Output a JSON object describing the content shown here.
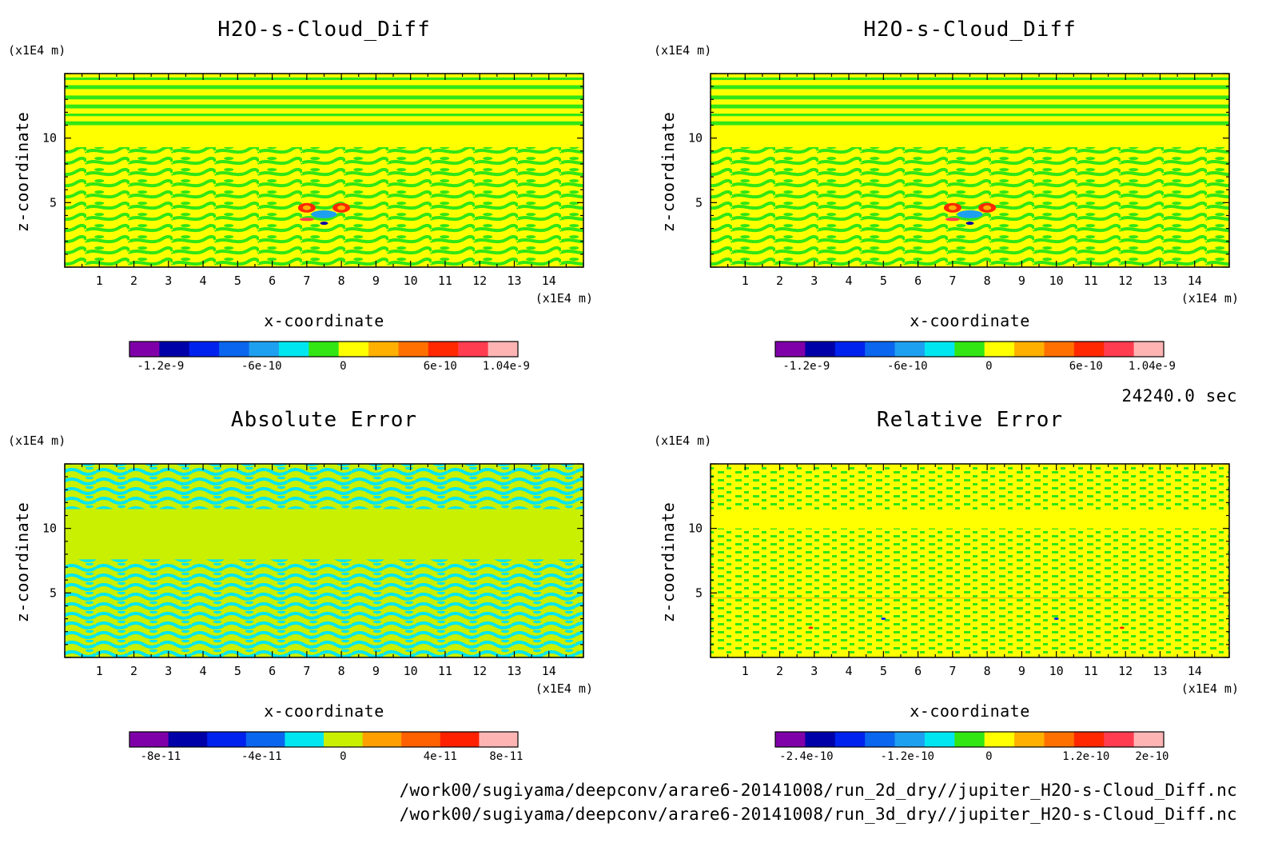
{
  "footer": {
    "time_label": "24240.0 sec",
    "path_line_1": "/work00/sugiyama/deepconv/arare6-20141008/run_2d_dry//jupiter_H2O-s-Cloud_Diff.nc",
    "path_line_2": "/work00/sugiyama/deepconv/arare6-20141008/run_3d_dry//jupiter_H2O-s-Cloud_Diff.nc"
  },
  "chart_data": [
    {
      "type": "heatmap",
      "title": "H2O-s-Cloud_Diff",
      "xlabel": "x-coordinate",
      "ylabel": "z-coordinate",
      "x_unit": "(x1E4 m)",
      "y_unit": "(x1E4 m)",
      "xlim": [
        0,
        15
      ],
      "ylim": [
        0,
        15
      ],
      "x_ticks": [
        "1",
        "2",
        "3",
        "4",
        "5",
        "6",
        "7",
        "8",
        "9",
        "10",
        "11",
        "12",
        "13",
        "14"
      ],
      "y_ticks": [
        "5",
        "10"
      ],
      "colorbar": {
        "colors": [
          "#7f00a8",
          "#0000a8",
          "#0022ee",
          "#0a66ee",
          "#1ea0f0",
          "#00e6f0",
          "#32e614",
          "#ffff00",
          "#ffb000",
          "#ff7000",
          "#ff2800",
          "#ff3c50",
          "#ffb4b4"
        ],
        "tick_labels": [
          "-1.2e-9",
          "-6e-10",
          "0",
          "6e-10",
          "1.04e-9"
        ]
      },
      "dominant_color": "#ffff00",
      "secondary_color": "#32e614"
    },
    {
      "type": "heatmap",
      "title": "H2O-s-Cloud_Diff",
      "xlabel": "x-coordinate",
      "ylabel": "z-coordinate",
      "x_unit": "(x1E4 m)",
      "y_unit": "(x1E4 m)",
      "xlim": [
        0,
        15
      ],
      "ylim": [
        0,
        15
      ],
      "x_ticks": [
        "1",
        "2",
        "3",
        "4",
        "5",
        "6",
        "7",
        "8",
        "9",
        "10",
        "11",
        "12",
        "13",
        "14"
      ],
      "y_ticks": [
        "5",
        "10"
      ],
      "colorbar": {
        "colors": [
          "#7f00a8",
          "#0000a8",
          "#0022ee",
          "#0a66ee",
          "#1ea0f0",
          "#00e6f0",
          "#32e614",
          "#ffff00",
          "#ffb000",
          "#ff7000",
          "#ff2800",
          "#ff3c50",
          "#ffb4b4"
        ],
        "tick_labels": [
          "-1.2e-9",
          "-6e-10",
          "0",
          "6e-10",
          "1.04e-9"
        ]
      },
      "dominant_color": "#ffff00",
      "secondary_color": "#32e614"
    },
    {
      "type": "heatmap",
      "title": "Absolute Error",
      "xlabel": "x-coordinate",
      "ylabel": "z-coordinate",
      "x_unit": "(x1E4 m)",
      "y_unit": "(x1E4 m)",
      "xlim": [
        0,
        15
      ],
      "ylim": [
        0,
        15
      ],
      "x_ticks": [
        "1",
        "2",
        "3",
        "4",
        "5",
        "6",
        "7",
        "8",
        "9",
        "10",
        "11",
        "12",
        "13",
        "14"
      ],
      "y_ticks": [
        "5",
        "10"
      ],
      "colorbar": {
        "colors": [
          "#7f00a8",
          "#0000a8",
          "#0022ee",
          "#0a66ee",
          "#00e6f0",
          "#c8f000",
          "#ffa000",
          "#ff6000",
          "#ff2000",
          "#ffb4b4"
        ],
        "tick_labels": [
          "-8e-11",
          "-4e-11",
          "0",
          "4e-11",
          "8e-11"
        ]
      },
      "dominant_color": "#c8f000",
      "secondary_color": "#00e6f0"
    },
    {
      "type": "heatmap",
      "title": "Relative Error",
      "xlabel": "x-coordinate",
      "ylabel": "z-coordinate",
      "x_unit": "(x1E4 m)",
      "y_unit": "(x1E4 m)",
      "xlim": [
        0,
        15
      ],
      "ylim": [
        0,
        15
      ],
      "x_ticks": [
        "1",
        "2",
        "3",
        "4",
        "5",
        "6",
        "7",
        "8",
        "9",
        "10",
        "11",
        "12",
        "13",
        "14"
      ],
      "y_ticks": [
        "5",
        "10"
      ],
      "colorbar": {
        "colors": [
          "#7f00a8",
          "#0000a8",
          "#0022ee",
          "#0a66ee",
          "#1ea0f0",
          "#00e6f0",
          "#32e614",
          "#ffff00",
          "#ffb000",
          "#ff7000",
          "#ff2800",
          "#ff3c50",
          "#ffb4b4"
        ],
        "tick_labels": [
          "-2.4e-10",
          "-1.2e-10",
          "0",
          "1.2e-10",
          "2e-10"
        ]
      },
      "dominant_color": "#ffff00",
      "secondary_color": "#32e614"
    }
  ]
}
